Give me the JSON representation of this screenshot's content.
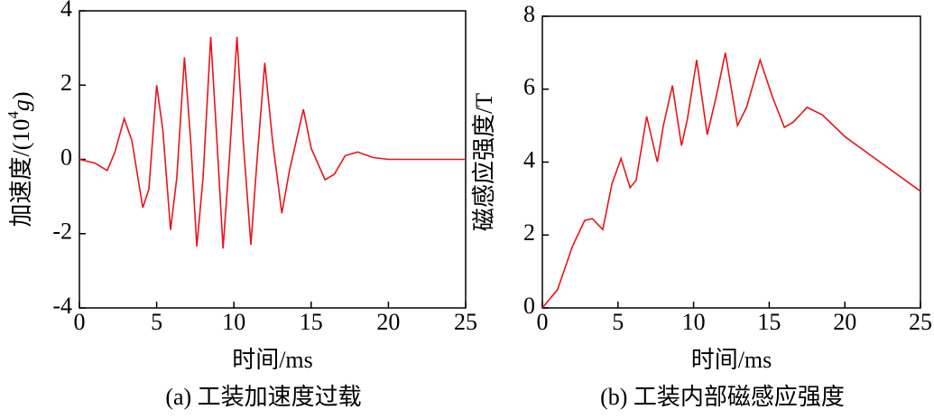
{
  "chart_data": [
    {
      "type": "line",
      "ylabel": [
        "加速度/(10",
        "4",
        "g",
        ")"
      ],
      "xlabel": "时间/ms",
      "caption": "(a) 工装加速度过载",
      "x": [
        0,
        1,
        1.8,
        2.3,
        2.9,
        3.4,
        4.1,
        4.5,
        5.0,
        5.4,
        5.9,
        6.3,
        6.8,
        7.2,
        7.6,
        8.0,
        8.5,
        8.9,
        9.3,
        9.7,
        10.2,
        10.6,
        11.1,
        11.5,
        12.0,
        12.5,
        13.1,
        13.6,
        14.5,
        15.0,
        15.9,
        16.5,
        17.2,
        18.0,
        19,
        20,
        25
      ],
      "series": [
        {
          "color": "#e8141b",
          "values": [
            0,
            -0.1,
            -0.3,
            0.2,
            1.1,
            0.5,
            -1.3,
            -0.8,
            2.0,
            0.8,
            -1.9,
            -0.5,
            2.75,
            0.5,
            -2.35,
            -0.5,
            3.3,
            0.5,
            -2.4,
            0,
            3.3,
            0.5,
            -2.3,
            0,
            2.6,
            0.5,
            -1.45,
            -0.3,
            1.35,
            0.3,
            -0.55,
            -0.4,
            0.1,
            0.2,
            0.05,
            0,
            0
          ]
        }
      ],
      "xlim": [
        0,
        25
      ],
      "xticks": [
        0,
        5,
        10,
        15,
        20,
        25
      ],
      "ylim": [
        -4,
        4
      ],
      "yticks": [
        -4,
        -2,
        0,
        2,
        4
      ]
    },
    {
      "type": "line",
      "ylabel": [
        "磁感应强度/T"
      ],
      "xlabel": "时间/ms",
      "caption": "(b) 工装内部磁感应强度",
      "x": [
        0,
        1,
        2,
        2.8,
        3.3,
        4,
        4.6,
        5.2,
        5.8,
        6.2,
        6.9,
        7.6,
        8,
        8.6,
        9.2,
        9.6,
        10.2,
        10.9,
        11.5,
        12.1,
        12.9,
        13.5,
        14.4,
        15.2,
        16,
        16.6,
        17.5,
        18.5,
        20,
        22,
        25
      ],
      "series": [
        {
          "color": "#e8141b",
          "values": [
            0,
            0.5,
            1.7,
            2.4,
            2.45,
            2.15,
            3.4,
            4.1,
            3.3,
            3.5,
            5.25,
            4.0,
            5.0,
            6.1,
            4.45,
            5.2,
            6.8,
            4.75,
            5.8,
            7.0,
            5.0,
            5.5,
            6.8,
            5.8,
            4.95,
            5.1,
            5.5,
            5.3,
            4.7,
            4.1,
            3.2
          ]
        }
      ],
      "xlim": [
        0,
        25
      ],
      "xticks": [
        0,
        5,
        10,
        15,
        20,
        25
      ],
      "ylim": [
        0,
        8
      ],
      "yticks": [
        0,
        2,
        4,
        6,
        8
      ]
    }
  ]
}
